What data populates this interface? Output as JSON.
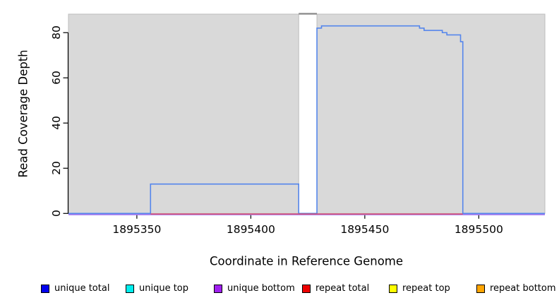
{
  "chart_data": {
    "type": "line",
    "title": "",
    "xlabel": "Coordinate in Reference Genome",
    "ylabel": "Read Coverage Depth",
    "xlim": [
      1895320,
      1895529
    ],
    "ylim": [
      0,
      88.2
    ],
    "xticks": [
      1895350,
      1895400,
      1895450,
      1895500
    ],
    "yticks": [
      0,
      20,
      40,
      60,
      80
    ],
    "grid": "off",
    "axis_color": "#000000",
    "background": {
      "color": "#d9d9d9",
      "border": "#bdbdbd",
      "regions": [
        [
          1895320,
          1895421
        ],
        [
          1895429,
          1895529
        ]
      ],
      "gap_top_segment": {
        "x0": 1895421,
        "x1": 1895429,
        "color": "#888888"
      }
    },
    "series": [
      {
        "name": "unique bottom",
        "color": "#a57df0",
        "width": 2.6,
        "points": [
          [
            1895320,
            0
          ],
          [
            1895529,
            0
          ]
        ]
      },
      {
        "name": "unique total",
        "color": "#5586ec",
        "width": 1.6,
        "points": [
          [
            1895320,
            0
          ],
          [
            1895356,
            0
          ],
          [
            1895356,
            13
          ],
          [
            1895421,
            13
          ],
          [
            1895421,
            0
          ],
          [
            1895429,
            0
          ],
          [
            1895429,
            82
          ],
          [
            1895431,
            82
          ],
          [
            1895431,
            83
          ],
          [
            1895474,
            83
          ],
          [
            1895474,
            82
          ],
          [
            1895476,
            82
          ],
          [
            1895476,
            81
          ],
          [
            1895484,
            81
          ],
          [
            1895484,
            80
          ],
          [
            1895486,
            80
          ],
          [
            1895486,
            79
          ],
          [
            1895492,
            79
          ],
          [
            1895492,
            76
          ],
          [
            1895493,
            76
          ],
          [
            1895493,
            0
          ],
          [
            1895529,
            0
          ]
        ]
      },
      {
        "name": "repeat total",
        "color": "#e8434f",
        "width": 1.3,
        "points": [
          [
            1895356,
            0
          ],
          [
            1895493,
            0
          ]
        ]
      }
    ],
    "legend": [
      {
        "label": "unique total",
        "color": "#0000ee"
      },
      {
        "label": "unique top",
        "color": "#00eeee"
      },
      {
        "label": "unique bottom",
        "color": "#a020f0"
      },
      {
        "label": "repeat total",
        "color": "#ee0000"
      },
      {
        "label": "repeat top",
        "color": "#ffff00"
      },
      {
        "label": "repeat bottom",
        "color": "#ffa500"
      }
    ],
    "legend_position": "bottom"
  }
}
